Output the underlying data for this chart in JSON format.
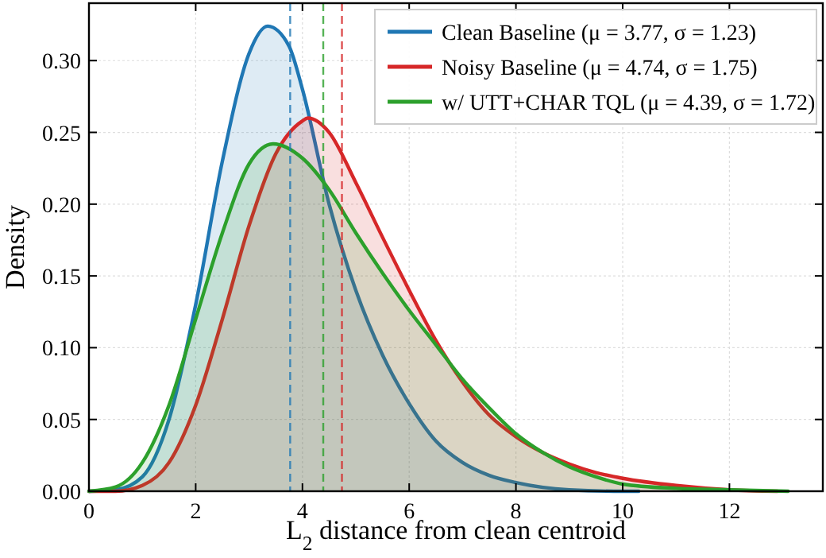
{
  "chart_data": {
    "type": "area",
    "xlabel": "L$_{2}$ distance from clean centroid",
    "ylabel": "Density",
    "xlim": [
      0,
      13.75
    ],
    "ylim": [
      0,
      0.34
    ],
    "xticks": [
      0,
      2,
      4,
      6,
      8,
      10,
      12
    ],
    "yticks": [
      {
        "value": 0,
        "label": "0.00"
      },
      {
        "value": 0.05,
        "label": "0.05"
      },
      {
        "value": 0.1,
        "label": "0.10"
      },
      {
        "value": 0.15,
        "label": "0.15"
      },
      {
        "value": 0.2,
        "label": "0.20"
      },
      {
        "value": 0.25,
        "label": "0.25"
      },
      {
        "value": 0.3,
        "label": "0.30"
      }
    ],
    "grid": true,
    "legend": "top right",
    "line_style": "solid",
    "marker": "none",
    "series": [
      {
        "name": "Clean Baseline (μ = 3.77, σ = 1.23)",
        "color": "#1f77b4",
        "x": [
          0,
          0.5,
          1,
          1.5,
          2,
          2.5,
          3,
          3.35,
          3.75,
          4,
          4.5,
          5,
          5.5,
          6,
          6.5,
          7,
          7.5,
          8,
          9,
          10,
          10.3
        ],
        "values": [
          0,
          0.001,
          0.01,
          0.05,
          0.13,
          0.23,
          0.305,
          0.324,
          0.31,
          0.28,
          0.2,
          0.14,
          0.095,
          0.061,
          0.035,
          0.02,
          0.011,
          0.006,
          0.001,
          0,
          0
        ]
      },
      {
        "name": "Noisy Baseline (μ = 4.74, σ = 1.75)",
        "color": "#d62728",
        "x": [
          0,
          0.5,
          1,
          1.5,
          2,
          2.5,
          3,
          3.5,
          4,
          4.1,
          4.5,
          5,
          5.5,
          6,
          6.5,
          7,
          7.5,
          8,
          8.5,
          9,
          9.5,
          10,
          11,
          12,
          12.9
        ],
        "values": [
          0,
          0,
          0.004,
          0.02,
          0.06,
          0.12,
          0.185,
          0.235,
          0.258,
          0.26,
          0.25,
          0.215,
          0.177,
          0.14,
          0.105,
          0.076,
          0.053,
          0.038,
          0.027,
          0.019,
          0.013,
          0.009,
          0.004,
          0.001,
          0
        ]
      },
      {
        "name": "w/ UTT+CHAR TQL (μ = 4.39, σ = 1.72)",
        "color": "#2ca02c",
        "x": [
          0,
          0.5,
          1,
          1.5,
          2,
          2.5,
          3,
          3.45,
          4,
          4.5,
          5,
          5.5,
          6,
          6.5,
          7,
          7.5,
          8,
          8.5,
          9,
          9.5,
          10,
          11,
          12,
          13.1
        ],
        "values": [
          0,
          0.003,
          0.02,
          0.06,
          0.12,
          0.18,
          0.228,
          0.242,
          0.232,
          0.21,
          0.18,
          0.152,
          0.126,
          0.102,
          0.078,
          0.058,
          0.04,
          0.027,
          0.017,
          0.01,
          0.005,
          0.002,
          0.001,
          0
        ]
      }
    ],
    "ref_lines": [
      {
        "axis": "x",
        "value": 3.77,
        "color": "#1f77b4",
        "line_style": "dashed"
      },
      {
        "axis": "x",
        "value": 4.74,
        "color": "#d62728",
        "line_style": "dashed"
      },
      {
        "axis": "x",
        "value": 4.39,
        "color": "#2ca02c",
        "line_style": "dashed"
      }
    ]
  }
}
